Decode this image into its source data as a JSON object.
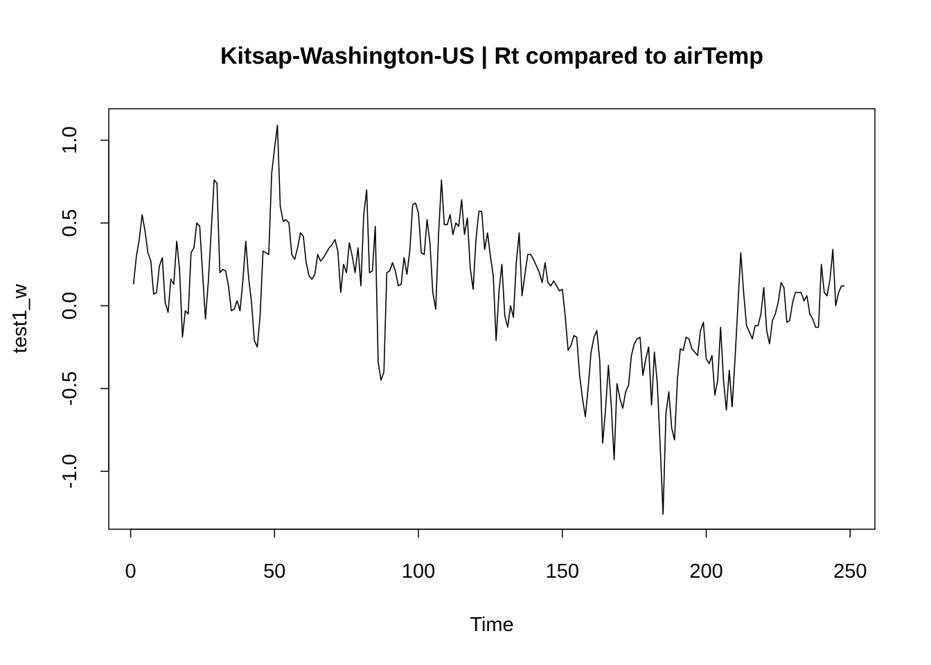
{
  "chart_data": {
    "type": "line",
    "title": "Kitsap-Washington-US | Rt compared to airTemp",
    "xlabel": "Time",
    "ylabel": "test1_w",
    "xlim": [
      -7.6,
      258.6
    ],
    "ylim": [
      -1.35,
      1.19
    ],
    "x_ticks": [
      0,
      50,
      100,
      150,
      200,
      250
    ],
    "x_tick_labels": [
      "0",
      "50",
      "100",
      "150",
      "200",
      "250"
    ],
    "y_ticks": [
      -1.0,
      -0.5,
      0.0,
      0.5,
      1.0
    ],
    "y_tick_labels": [
      "-1.0",
      "-0.5",
      "0.0",
      "0.5",
      "1.0"
    ],
    "grid": false,
    "series": [
      {
        "color": "#000000",
        "x": [
          1,
          2,
          3,
          4,
          5,
          6,
          7,
          8,
          9,
          10,
          11,
          12,
          13,
          14,
          15,
          16,
          17,
          18,
          19,
          20,
          21,
          22,
          23,
          24,
          25,
          26,
          27,
          28,
          29,
          30,
          31,
          32,
          33,
          34,
          35,
          36,
          37,
          38,
          39,
          40,
          41,
          42,
          43,
          44,
          45,
          46,
          47,
          48,
          49,
          50,
          51,
          52,
          53,
          54,
          55,
          56,
          57,
          58,
          59,
          60,
          61,
          62,
          63,
          64,
          65,
          66,
          67,
          68,
          69,
          70,
          71,
          72,
          73,
          74,
          75,
          76,
          77,
          78,
          79,
          80,
          81,
          82,
          83,
          84,
          85,
          86,
          87,
          88,
          89,
          90,
          91,
          92,
          93,
          94,
          95,
          96,
          97,
          98,
          99,
          100,
          101,
          102,
          103,
          104,
          105,
          106,
          107,
          108,
          109,
          110,
          111,
          112,
          113,
          114,
          115,
          116,
          117,
          118,
          119,
          120,
          121,
          122,
          123,
          124,
          125,
          126,
          127,
          128,
          129,
          130,
          131,
          132,
          133,
          134,
          135,
          136,
          137,
          138,
          139,
          140,
          141,
          142,
          143,
          144,
          145,
          146,
          147,
          148,
          149,
          150,
          151,
          152,
          153,
          154,
          155,
          156,
          157,
          158,
          159,
          160,
          161,
          162,
          163,
          164,
          165,
          166,
          167,
          168,
          169,
          170,
          171,
          172,
          173,
          174,
          175,
          176,
          177,
          178,
          179,
          180,
          181,
          182,
          183,
          184,
          185,
          186,
          187,
          188,
          189,
          190,
          191,
          192,
          193,
          194,
          195,
          196,
          197,
          198,
          199,
          200,
          201,
          202,
          203,
          204,
          205,
          206,
          207,
          208,
          209,
          210,
          211,
          212,
          213,
          214,
          215,
          216,
          217,
          218,
          219,
          220,
          221,
          222,
          223,
          224,
          225,
          226,
          227,
          228,
          229,
          230,
          231,
          232,
          233,
          234,
          235,
          236,
          237,
          238,
          239,
          240,
          241,
          242,
          243,
          244,
          245,
          246,
          247,
          248
        ],
        "values": [
          0.13,
          0.3,
          0.4,
          0.55,
          0.45,
          0.32,
          0.27,
          0.07,
          0.08,
          0.24,
          0.29,
          0.02,
          -0.04,
          0.16,
          0.13,
          0.39,
          0.22,
          -0.19,
          -0.03,
          -0.05,
          0.32,
          0.35,
          0.5,
          0.48,
          0.2,
          -0.08,
          0.15,
          0.45,
          0.76,
          0.74,
          0.2,
          0.22,
          0.21,
          0.12,
          -0.03,
          -0.02,
          0.03,
          -0.03,
          0.15,
          0.39,
          0.17,
          0.02,
          -0.21,
          -0.25,
          -0.06,
          0.33,
          0.32,
          0.31,
          0.8,
          0.95,
          1.09,
          0.6,
          0.51,
          0.52,
          0.5,
          0.31,
          0.28,
          0.35,
          0.44,
          0.42,
          0.26,
          0.18,
          0.16,
          0.19,
          0.31,
          0.27,
          0.29,
          0.32,
          0.35,
          0.37,
          0.4,
          0.33,
          0.08,
          0.25,
          0.2,
          0.38,
          0.3,
          0.2,
          0.35,
          0.12,
          0.55,
          0.7,
          0.2,
          0.21,
          0.48,
          -0.34,
          -0.45,
          -0.4,
          0.2,
          0.21,
          0.26,
          0.21,
          0.12,
          0.13,
          0.29,
          0.19,
          0.33,
          0.61,
          0.62,
          0.56,
          0.32,
          0.31,
          0.52,
          0.38,
          0.08,
          -0.02,
          0.43,
          0.76,
          0.49,
          0.49,
          0.55,
          0.43,
          0.5,
          0.48,
          0.64,
          0.43,
          0.53,
          0.23,
          0.1,
          0.4,
          0.57,
          0.57,
          0.34,
          0.44,
          0.3,
          0.18,
          -0.21,
          0.09,
          0.25,
          -0.06,
          -0.13,
          0.0,
          -0.07,
          0.26,
          0.44,
          0.06,
          0.19,
          0.31,
          0.31,
          0.28,
          0.24,
          0.2,
          0.14,
          0.26,
          0.14,
          0.12,
          0.15,
          0.12,
          0.09,
          0.1,
          -0.06,
          -0.27,
          -0.24,
          -0.18,
          -0.19,
          -0.42,
          -0.56,
          -0.67,
          -0.49,
          -0.28,
          -0.19,
          -0.15,
          -0.33,
          -0.83,
          -0.63,
          -0.36,
          -0.6,
          -0.93,
          -0.47,
          -0.56,
          -0.62,
          -0.52,
          -0.48,
          -0.3,
          -0.23,
          -0.2,
          -0.19,
          -0.42,
          -0.32,
          -0.25,
          -0.6,
          -0.28,
          -0.47,
          -0.85,
          -1.26,
          -0.65,
          -0.52,
          -0.74,
          -0.81,
          -0.44,
          -0.26,
          -0.27,
          -0.19,
          -0.2,
          -0.26,
          -0.28,
          -0.3,
          -0.15,
          -0.1,
          -0.32,
          -0.35,
          -0.3,
          -0.54,
          -0.45,
          -0.13,
          -0.45,
          -0.63,
          -0.39,
          -0.61,
          -0.32,
          0.0,
          0.32,
          0.08,
          -0.12,
          -0.16,
          -0.2,
          -0.12,
          -0.12,
          -0.05,
          0.11,
          -0.15,
          -0.23,
          -0.09,
          -0.05,
          0.02,
          0.14,
          0.11,
          -0.1,
          -0.09,
          0.02,
          0.08,
          0.08,
          0.08,
          0.03,
          0.06,
          -0.05,
          -0.08,
          -0.13,
          -0.13,
          0.25,
          0.08,
          0.06,
          0.16,
          0.34,
          0.0,
          0.08,
          0.12,
          0.12
        ]
      }
    ]
  }
}
